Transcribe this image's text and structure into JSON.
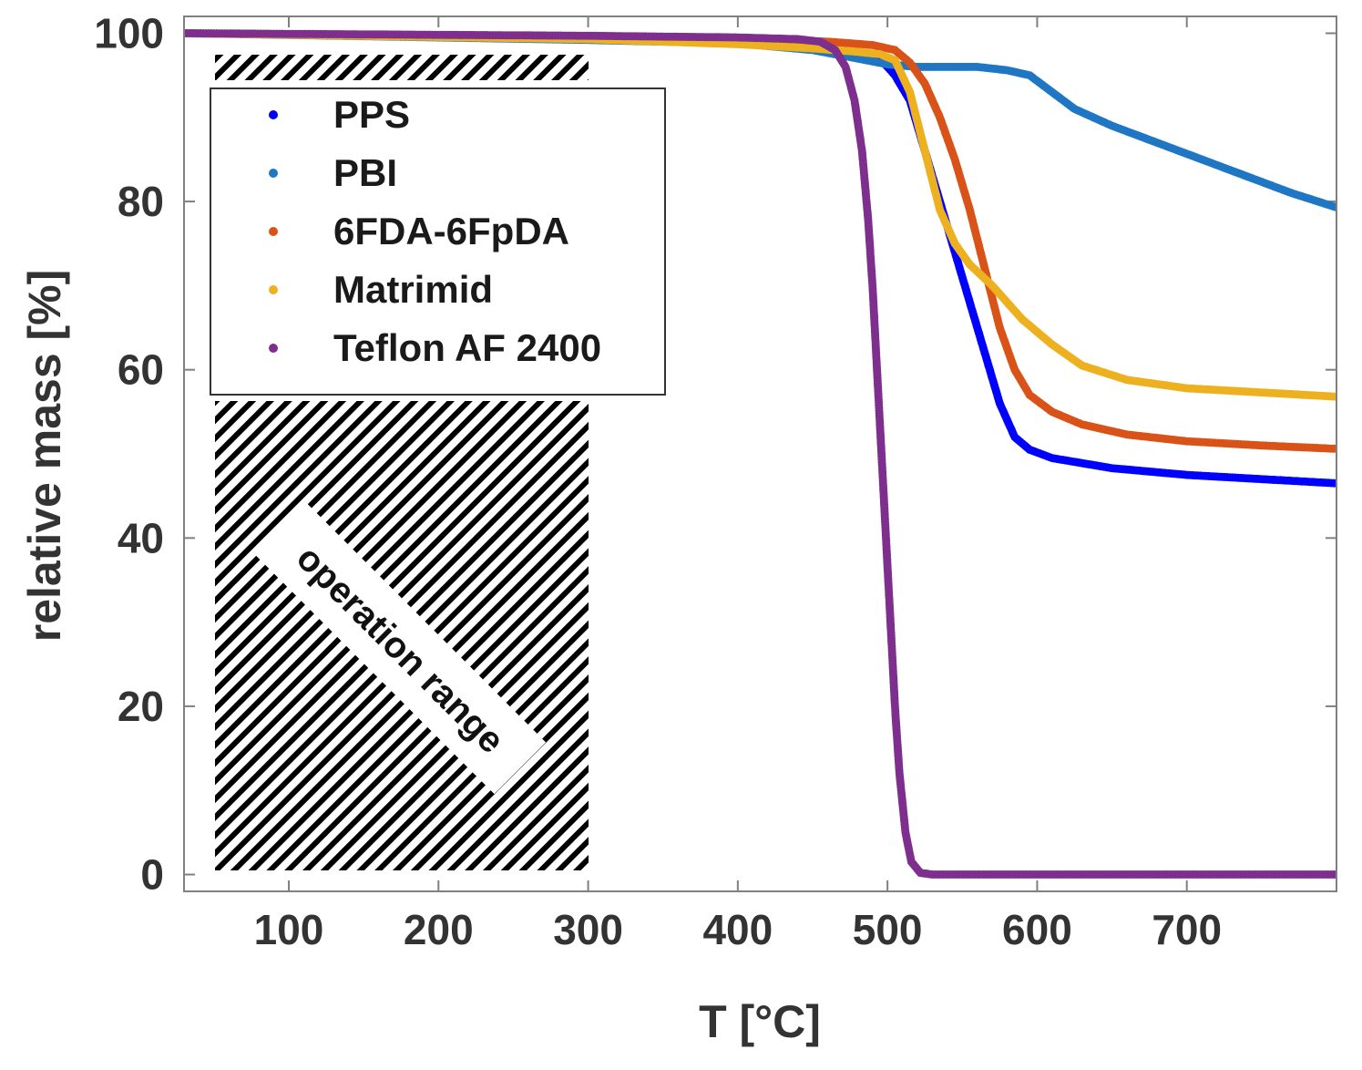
{
  "chart_data": {
    "type": "scatter",
    "xlabel": "T [°C]",
    "ylabel": "relative mass [%]",
    "xlim": [
      30,
      800
    ],
    "ylim": [
      -2,
      102
    ],
    "xticks": [
      100,
      200,
      300,
      400,
      500,
      600,
      700
    ],
    "yticks": [
      0,
      20,
      40,
      60,
      80,
      100
    ],
    "legend_position": "top-left",
    "annotation": {
      "text": "operation range",
      "x_range": [
        50,
        300
      ],
      "pattern": "diagonal-hatch"
    },
    "series": [
      {
        "name": "PPS",
        "color": "#0000ff",
        "points": [
          [
            30,
            100
          ],
          [
            300,
            99.5
          ],
          [
            400,
            99
          ],
          [
            460,
            98
          ],
          [
            480,
            97.5
          ],
          [
            495,
            97
          ],
          [
            505,
            95
          ],
          [
            515,
            92
          ],
          [
            525,
            86
          ],
          [
            535,
            80
          ],
          [
            545,
            74
          ],
          [
            555,
            68
          ],
          [
            565,
            62
          ],
          [
            575,
            56
          ],
          [
            585,
            52
          ],
          [
            595,
            50.5
          ],
          [
            610,
            49.5
          ],
          [
            650,
            48.3
          ],
          [
            700,
            47.5
          ],
          [
            750,
            47
          ],
          [
            800,
            46.5
          ]
        ]
      },
      {
        "name": "PBI",
        "color": "#1f77c4",
        "points": [
          [
            30,
            100
          ],
          [
            200,
            99.5
          ],
          [
            300,
            99.2
          ],
          [
            400,
            98.8
          ],
          [
            450,
            98
          ],
          [
            480,
            97
          ],
          [
            500,
            96.3
          ],
          [
            520,
            96
          ],
          [
            560,
            96
          ],
          [
            580,
            95.6
          ],
          [
            595,
            95
          ],
          [
            610,
            93
          ],
          [
            625,
            91
          ],
          [
            650,
            89
          ],
          [
            680,
            87
          ],
          [
            710,
            85
          ],
          [
            740,
            83
          ],
          [
            770,
            81
          ],
          [
            800,
            79.3
          ]
        ]
      },
      {
        "name": "6FDA-6FpDA",
        "color": "#d95319",
        "points": [
          [
            30,
            100
          ],
          [
            300,
            99.5
          ],
          [
            400,
            99.3
          ],
          [
            460,
            99
          ],
          [
            490,
            98.6
          ],
          [
            505,
            98
          ],
          [
            515,
            96.5
          ],
          [
            525,
            94
          ],
          [
            535,
            90
          ],
          [
            545,
            85
          ],
          [
            555,
            79
          ],
          [
            565,
            72
          ],
          [
            575,
            65
          ],
          [
            585,
            60
          ],
          [
            595,
            57
          ],
          [
            610,
            55
          ],
          [
            630,
            53.5
          ],
          [
            660,
            52.3
          ],
          [
            700,
            51.5
          ],
          [
            750,
            51
          ],
          [
            800,
            50.6
          ]
        ]
      },
      {
        "name": "Matrimid",
        "color": "#edb120",
        "points": [
          [
            30,
            100
          ],
          [
            300,
            99.3
          ],
          [
            400,
            98.7
          ],
          [
            450,
            98.2
          ],
          [
            480,
            97.8
          ],
          [
            495,
            97.5
          ],
          [
            505,
            96.8
          ],
          [
            515,
            93
          ],
          [
            525,
            86
          ],
          [
            535,
            79
          ],
          [
            545,
            75
          ],
          [
            555,
            72.5
          ],
          [
            570,
            70
          ],
          [
            590,
            66
          ],
          [
            610,
            63
          ],
          [
            630,
            60.5
          ],
          [
            660,
            58.8
          ],
          [
            700,
            57.8
          ],
          [
            750,
            57.3
          ],
          [
            800,
            56.8
          ]
        ]
      },
      {
        "name": "Teflon AF 2400",
        "color": "#7e2f8e",
        "points": [
          [
            30,
            100
          ],
          [
            300,
            99.7
          ],
          [
            400,
            99.5
          ],
          [
            440,
            99.3
          ],
          [
            455,
            99
          ],
          [
            465,
            98
          ],
          [
            472,
            96
          ],
          [
            478,
            92
          ],
          [
            483,
            86
          ],
          [
            487,
            78
          ],
          [
            490,
            70
          ],
          [
            493,
            60
          ],
          [
            496,
            50
          ],
          [
            499,
            40
          ],
          [
            502,
            30
          ],
          [
            505,
            20
          ],
          [
            508,
            12
          ],
          [
            512,
            5
          ],
          [
            516,
            1.5
          ],
          [
            522,
            0.2
          ],
          [
            530,
            0
          ],
          [
            600,
            0
          ],
          [
            700,
            0
          ],
          [
            800,
            0
          ]
        ]
      }
    ]
  }
}
